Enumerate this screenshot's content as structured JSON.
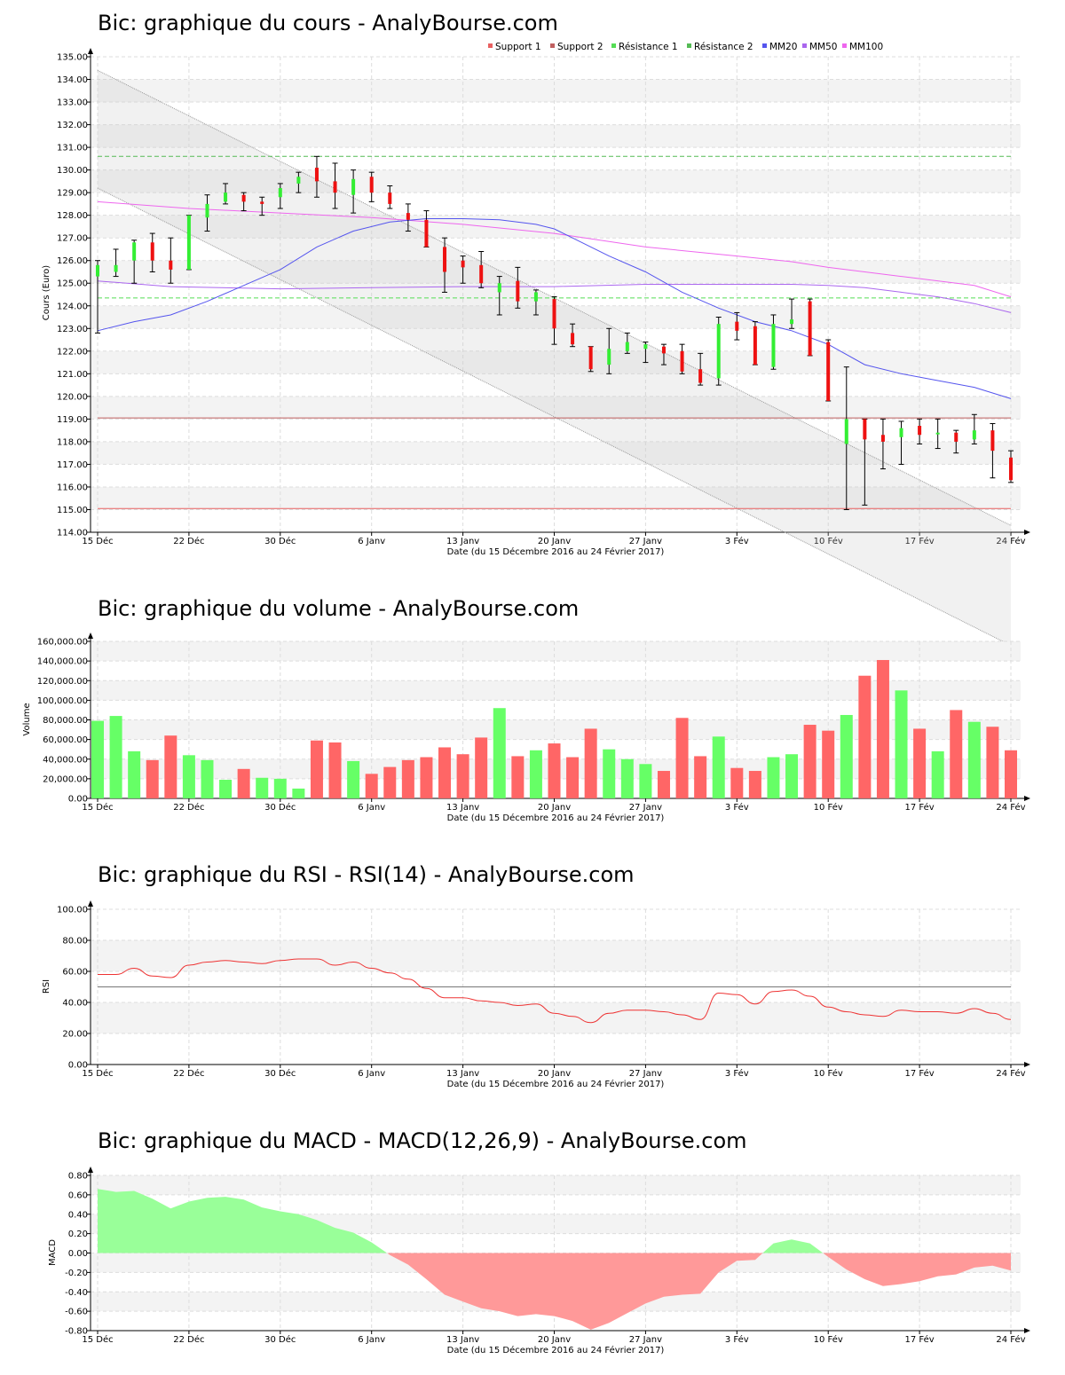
{
  "colors": {
    "up": "#33ee33",
    "down": "#ee1111",
    "vol_up": "#66ff66",
    "vol_down": "#ff6666",
    "support1": "#e86060",
    "support2": "#c06060",
    "resistance1": "#55dd55",
    "resistance2": "#55bb55",
    "mm20": "#5555ee",
    "mm50": "#aa66ee",
    "mm100": "#ee66ee",
    "rsi": "#ee3333",
    "macd_pos": "#99ff99",
    "macd_neg": "#ff9999"
  },
  "x_axis": {
    "label": "Date (du 15 Décembre 2016 au 24 Février 2017)",
    "ticks": [
      {
        "label": "15 Déc",
        "day": 0
      },
      {
        "label": "22 Déc",
        "day": 5
      },
      {
        "label": "30 Déc",
        "day": 10
      },
      {
        "label": "6 Janv",
        "day": 15
      },
      {
        "label": "13 Janv",
        "day": 20
      },
      {
        "label": "20 Janv",
        "day": 25
      },
      {
        "label": "27 Janv",
        "day": 30
      },
      {
        "label": "3 Fév",
        "day": 35
      },
      {
        "label": "10 Fév",
        "day": 40
      },
      {
        "label": "17 Fév",
        "day": 45
      },
      {
        "label": "24 Fév",
        "day": 50
      }
    ]
  },
  "chart_data": [
    {
      "type": "candlestick",
      "title": "Bic: graphique du cours - AnalyBourse.com",
      "ylabel": "Cours (Euro)",
      "ylim": [
        114,
        135
      ],
      "yticks": [
        "114.00",
        "115.00",
        "116.00",
        "117.00",
        "118.00",
        "119.00",
        "120.00",
        "121.00",
        "122.00",
        "123.00",
        "124.00",
        "125.00",
        "126.00",
        "127.00",
        "128.00",
        "129.00",
        "130.00",
        "131.00",
        "132.00",
        "133.00",
        "134.00",
        "135.00"
      ],
      "legend": [
        "Support 1",
        "Support 2",
        "Résistance 1",
        "Résistance 2",
        "MM20",
        "MM50",
        "MM100"
      ],
      "candles": [
        {
          "o": 125.3,
          "h": 126.0,
          "l": 122.8,
          "c": 125.8
        },
        {
          "o": 125.5,
          "h": 126.5,
          "l": 125.3,
          "c": 125.8
        },
        {
          "o": 126.0,
          "h": 126.9,
          "l": 125.0,
          "c": 126.8
        },
        {
          "o": 126.8,
          "h": 127.2,
          "l": 125.5,
          "c": 126.0
        },
        {
          "o": 126.0,
          "h": 127.0,
          "l": 125.0,
          "c": 125.6
        },
        {
          "o": 125.6,
          "h": 128.0,
          "l": 125.6,
          "c": 128.0
        },
        {
          "o": 127.9,
          "h": 128.9,
          "l": 127.3,
          "c": 128.5
        },
        {
          "o": 128.6,
          "h": 129.4,
          "l": 128.5,
          "c": 129.0
        },
        {
          "o": 128.9,
          "h": 129.0,
          "l": 128.2,
          "c": 128.6
        },
        {
          "o": 128.6,
          "h": 128.8,
          "l": 128.0,
          "c": 128.5
        },
        {
          "o": 128.8,
          "h": 129.4,
          "l": 128.3,
          "c": 129.2
        },
        {
          "o": 129.4,
          "h": 129.9,
          "l": 129.0,
          "c": 129.7
        },
        {
          "o": 130.1,
          "h": 130.6,
          "l": 128.8,
          "c": 129.5
        },
        {
          "o": 129.5,
          "h": 130.3,
          "l": 128.3,
          "c": 129.0
        },
        {
          "o": 128.9,
          "h": 130.0,
          "l": 128.1,
          "c": 129.6
        },
        {
          "o": 129.7,
          "h": 129.9,
          "l": 128.6,
          "c": 129.0
        },
        {
          "o": 129.0,
          "h": 129.3,
          "l": 128.3,
          "c": 128.5
        },
        {
          "o": 128.1,
          "h": 128.5,
          "l": 127.3,
          "c": 127.8
        },
        {
          "o": 127.8,
          "h": 128.2,
          "l": 126.6,
          "c": 126.6
        },
        {
          "o": 126.6,
          "h": 127.0,
          "l": 124.6,
          "c": 125.5
        },
        {
          "o": 126.0,
          "h": 126.2,
          "l": 125.0,
          "c": 125.7
        },
        {
          "o": 125.8,
          "h": 126.4,
          "l": 124.8,
          "c": 125.0
        },
        {
          "o": 124.6,
          "h": 125.3,
          "l": 123.6,
          "c": 125.0
        },
        {
          "o": 125.1,
          "h": 125.7,
          "l": 123.9,
          "c": 124.2
        },
        {
          "o": 124.2,
          "h": 124.7,
          "l": 123.6,
          "c": 124.6
        },
        {
          "o": 124.3,
          "h": 124.4,
          "l": 122.3,
          "c": 123.0
        },
        {
          "o": 122.8,
          "h": 123.2,
          "l": 122.2,
          "c": 122.3
        },
        {
          "o": 122.2,
          "h": 122.2,
          "l": 121.1,
          "c": 121.2
        },
        {
          "o": 121.4,
          "h": 123.0,
          "l": 121.0,
          "c": 122.1
        },
        {
          "o": 122.0,
          "h": 122.8,
          "l": 121.9,
          "c": 122.4
        },
        {
          "o": 122.1,
          "h": 122.4,
          "l": 121.5,
          "c": 122.3
        },
        {
          "o": 122.2,
          "h": 122.3,
          "l": 121.4,
          "c": 121.9
        },
        {
          "o": 122.0,
          "h": 122.3,
          "l": 121.0,
          "c": 121.1
        },
        {
          "o": 121.2,
          "h": 121.9,
          "l": 120.5,
          "c": 120.6
        },
        {
          "o": 120.8,
          "h": 123.5,
          "l": 120.5,
          "c": 123.2
        },
        {
          "o": 123.3,
          "h": 123.7,
          "l": 122.5,
          "c": 122.9
        },
        {
          "o": 123.1,
          "h": 123.3,
          "l": 121.4,
          "c": 121.4
        },
        {
          "o": 121.3,
          "h": 123.6,
          "l": 121.2,
          "c": 123.2
        },
        {
          "o": 123.2,
          "h": 124.3,
          "l": 123.0,
          "c": 123.4
        },
        {
          "o": 124.2,
          "h": 124.3,
          "l": 121.8,
          "c": 121.8
        },
        {
          "o": 122.4,
          "h": 122.5,
          "l": 119.8,
          "c": 119.8
        },
        {
          "o": 117.9,
          "h": 121.3,
          "l": 115.0,
          "c": 119.0
        },
        {
          "o": 119.0,
          "h": 119.0,
          "l": 115.2,
          "c": 118.1
        },
        {
          "o": 118.3,
          "h": 119.0,
          "l": 116.8,
          "c": 118.0
        },
        {
          "o": 118.2,
          "h": 118.9,
          "l": 117.0,
          "c": 118.6
        },
        {
          "o": 118.7,
          "h": 119.0,
          "l": 117.9,
          "c": 118.3
        },
        {
          "o": 118.4,
          "h": 119.0,
          "l": 117.7,
          "c": 118.4
        },
        {
          "o": 118.4,
          "h": 118.5,
          "l": 117.5,
          "c": 118.0
        },
        {
          "o": 118.1,
          "h": 119.2,
          "l": 117.9,
          "c": 118.5
        },
        {
          "o": 118.5,
          "h": 118.8,
          "l": 116.4,
          "c": 117.6
        },
        {
          "o": 117.3,
          "h": 117.6,
          "l": 116.2,
          "c": 116.3
        }
      ],
      "support1": 115.05,
      "support2": 119.05,
      "resistance1": 124.35,
      "resistance2": 130.6,
      "trend_channel": {
        "upper": [
          134.4,
          114.3
        ],
        "lower": [
          129.2,
          109.0
        ]
      },
      "mm20": [
        [
          0,
          122.9
        ],
        [
          2,
          123.3
        ],
        [
          4,
          123.6
        ],
        [
          6,
          124.2
        ],
        [
          8,
          124.9
        ],
        [
          10,
          125.6
        ],
        [
          12,
          126.6
        ],
        [
          14,
          127.3
        ],
        [
          16,
          127.7
        ],
        [
          18,
          127.85
        ],
        [
          20,
          127.85
        ],
        [
          22,
          127.8
        ],
        [
          24,
          127.6
        ],
        [
          25,
          127.4
        ],
        [
          26,
          127.0
        ],
        [
          28,
          126.2
        ],
        [
          30,
          125.5
        ],
        [
          32,
          124.6
        ],
        [
          34,
          123.9
        ],
        [
          36,
          123.3
        ],
        [
          38,
          122.9
        ],
        [
          40,
          122.3
        ],
        [
          42,
          121.4
        ],
        [
          44,
          121.0
        ],
        [
          46,
          120.7
        ],
        [
          48,
          120.4
        ],
        [
          50,
          119.9
        ]
      ],
      "mm50": [
        [
          0,
          125.1
        ],
        [
          4,
          124.85
        ],
        [
          10,
          124.75
        ],
        [
          15,
          124.8
        ],
        [
          20,
          124.85
        ],
        [
          25,
          124.85
        ],
        [
          30,
          124.95
        ],
        [
          35,
          124.95
        ],
        [
          38,
          124.95
        ],
        [
          40,
          124.9
        ],
        [
          42,
          124.8
        ],
        [
          44,
          124.6
        ],
        [
          46,
          124.4
        ],
        [
          48,
          124.1
        ],
        [
          50,
          123.7
        ]
      ],
      "mm100": [
        [
          0,
          128.6
        ],
        [
          5,
          128.3
        ],
        [
          10,
          128.1
        ],
        [
          15,
          127.9
        ],
        [
          20,
          127.6
        ],
        [
          25,
          127.2
        ],
        [
          30,
          126.6
        ],
        [
          35,
          126.2
        ],
        [
          38,
          125.95
        ],
        [
          40,
          125.7
        ],
        [
          44,
          125.3
        ],
        [
          48,
          124.9
        ],
        [
          50,
          124.4
        ]
      ]
    },
    {
      "type": "bar",
      "title": "Bic: graphique du volume - AnalyBourse.com",
      "ylabel": "Volume",
      "ylim": [
        0,
        160000
      ],
      "yticks": [
        "0.00",
        "20,000.00",
        "40,000.00",
        "60,000.00",
        "80,000.00",
        "100,000.00",
        "120,000.00",
        "140,000.00",
        "160,000.00"
      ],
      "values": [
        79000,
        84000,
        48000,
        39000,
        64000,
        44000,
        39000,
        19000,
        30000,
        21000,
        20000,
        10000,
        59000,
        57000,
        38000,
        25000,
        32000,
        39000,
        42000,
        52000,
        45000,
        62000,
        92000,
        43000,
        49000,
        56000,
        42000,
        71000,
        50000,
        40000,
        35000,
        28000,
        82000,
        43000,
        63000,
        31000,
        28000,
        42000,
        45000,
        75000,
        69000,
        85000,
        125000,
        141000,
        110000,
        71000,
        48000,
        90000,
        78000,
        73000,
        49000
      ],
      "up": [
        true,
        true,
        true,
        false,
        false,
        true,
        true,
        true,
        false,
        true,
        true,
        true,
        false,
        false,
        true,
        false,
        false,
        false,
        false,
        false,
        false,
        false,
        true,
        false,
        true,
        false,
        false,
        false,
        true,
        true,
        true,
        false,
        false,
        false,
        true,
        false,
        false,
        true,
        true,
        false,
        false,
        true,
        false,
        false,
        true,
        false,
        true,
        false,
        true,
        false,
        false
      ]
    },
    {
      "type": "line",
      "title": "Bic: graphique du RSI - RSI(14) - AnalyBourse.com",
      "ylabel": "RSI",
      "ylim": [
        0,
        100
      ],
      "yticks": [
        "0.00",
        "20.00",
        "40.00",
        "60.00",
        "80.00",
        "100.00"
      ],
      "reference": 50,
      "values": [
        [
          0,
          58
        ],
        [
          1,
          58
        ],
        [
          2,
          62
        ],
        [
          3,
          57
        ],
        [
          4,
          56
        ],
        [
          5,
          64
        ],
        [
          6,
          66
        ],
        [
          7,
          67
        ],
        [
          8,
          66
        ],
        [
          9,
          65
        ],
        [
          10,
          67
        ],
        [
          11,
          68
        ],
        [
          12,
          68
        ],
        [
          13,
          64
        ],
        [
          14,
          66
        ],
        [
          15,
          62
        ],
        [
          16,
          59
        ],
        [
          17,
          55
        ],
        [
          18,
          49
        ],
        [
          19,
          43
        ],
        [
          20,
          43
        ],
        [
          21,
          41
        ],
        [
          22,
          40
        ],
        [
          23,
          38
        ],
        [
          24,
          39
        ],
        [
          25,
          33
        ],
        [
          26,
          31
        ],
        [
          27,
          27
        ],
        [
          28,
          33
        ],
        [
          29,
          35
        ],
        [
          30,
          35
        ],
        [
          31,
          34
        ],
        [
          32,
          32
        ],
        [
          33,
          29
        ],
        [
          34,
          46
        ],
        [
          35,
          45
        ],
        [
          36,
          39
        ],
        [
          37,
          47
        ],
        [
          38,
          48
        ],
        [
          39,
          44
        ],
        [
          40,
          37
        ],
        [
          41,
          34
        ],
        [
          42,
          32
        ],
        [
          43,
          31
        ],
        [
          44,
          35
        ],
        [
          45,
          34
        ],
        [
          46,
          34
        ],
        [
          47,
          33
        ],
        [
          48,
          36
        ],
        [
          49,
          33
        ],
        [
          50,
          29
        ]
      ]
    },
    {
      "type": "area",
      "title": "Bic: graphique du MACD - MACD(12,26,9) - AnalyBourse.com",
      "ylabel": "MACD",
      "ylim": [
        -0.8,
        0.8
      ],
      "yticks": [
        "-0.80",
        "-0.60",
        "-0.40",
        "-0.20",
        "0.00",
        "0.20",
        "0.40",
        "0.60",
        "0.80"
      ],
      "values": [
        [
          0,
          0.66
        ],
        [
          1,
          0.63
        ],
        [
          2,
          0.64
        ],
        [
          3,
          0.56
        ],
        [
          4,
          0.46
        ],
        [
          5,
          0.53
        ],
        [
          6,
          0.57
        ],
        [
          7,
          0.58
        ],
        [
          8,
          0.55
        ],
        [
          9,
          0.47
        ],
        [
          10,
          0.43
        ],
        [
          11,
          0.4
        ],
        [
          12,
          0.34
        ],
        [
          13,
          0.26
        ],
        [
          14,
          0.21
        ],
        [
          15,
          0.11
        ],
        [
          16,
          -0.02
        ],
        [
          17,
          -0.12
        ],
        [
          18,
          -0.27
        ],
        [
          19,
          -0.43
        ],
        [
          20,
          -0.5
        ],
        [
          21,
          -0.57
        ],
        [
          22,
          -0.6
        ],
        [
          23,
          -0.65
        ],
        [
          24,
          -0.63
        ],
        [
          25,
          -0.65
        ],
        [
          26,
          -0.7
        ],
        [
          27,
          -0.79
        ],
        [
          28,
          -0.72
        ],
        [
          29,
          -0.62
        ],
        [
          30,
          -0.52
        ],
        [
          31,
          -0.45
        ],
        [
          32,
          -0.43
        ],
        [
          33,
          -0.42
        ],
        [
          34,
          -0.2
        ],
        [
          35,
          -0.08
        ],
        [
          36,
          -0.07
        ],
        [
          37,
          0.1
        ],
        [
          38,
          0.14
        ],
        [
          39,
          0.1
        ],
        [
          40,
          -0.04
        ],
        [
          41,
          -0.17
        ],
        [
          42,
          -0.27
        ],
        [
          43,
          -0.34
        ],
        [
          44,
          -0.32
        ],
        [
          45,
          -0.29
        ],
        [
          46,
          -0.24
        ],
        [
          47,
          -0.22
        ],
        [
          48,
          -0.15
        ],
        [
          49,
          -0.13
        ],
        [
          50,
          -0.18
        ]
      ]
    }
  ]
}
